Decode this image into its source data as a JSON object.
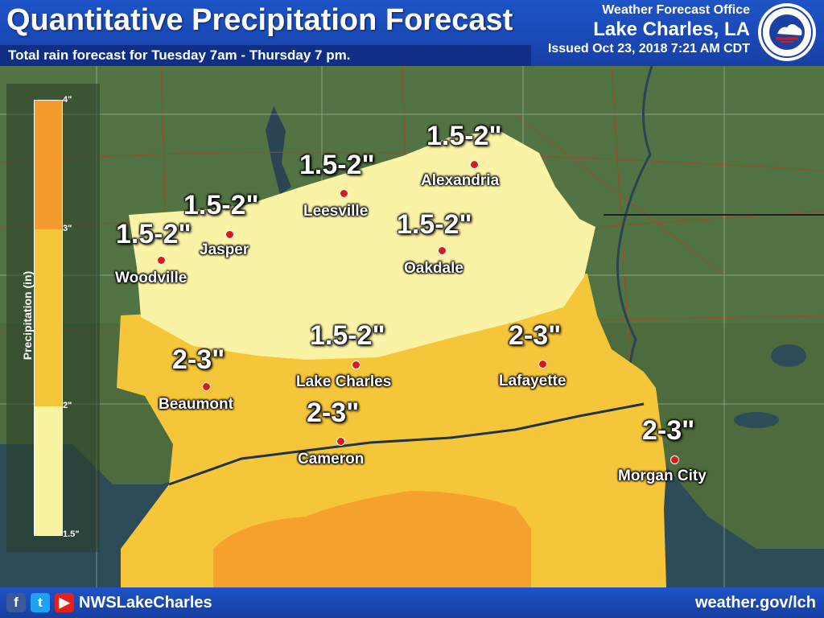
{
  "header": {
    "title": "Quantitative Precipitation Forecast",
    "subtitle": "Total rain forecast for Tuesday 7am - Thursday 7 pm.",
    "office": "Weather Forecast Office",
    "location": "Lake Charles, LA",
    "issued": "Issued Oct 23, 2018 7:21 AM CDT",
    "logo_icon": "nws-logo-icon"
  },
  "legend": {
    "label": "Precipitation (in)",
    "ticks": [
      "4\"",
      "3\"",
      "2\"",
      "1.5\""
    ],
    "colors": {
      "c_3_4": "#f59a2c",
      "c_2_3": "#f6c63a",
      "c_15_2": "#f9f4a2"
    }
  },
  "colors": {
    "land": "#4a6a3c",
    "water": "#2d4b5a",
    "light_yellow": "#faf3a6",
    "gold": "#f6c63a",
    "orange": "#f6a02e"
  },
  "cities": [
    {
      "name": "Alexandria"
    },
    {
      "name": "Leesville"
    },
    {
      "name": "Jasper"
    },
    {
      "name": "Woodville"
    },
    {
      "name": "Oakdale"
    },
    {
      "name": "Lake Charles"
    },
    {
      "name": "Lafayette"
    },
    {
      "name": "Beaumont"
    },
    {
      "name": "Cameron"
    },
    {
      "name": "Morgan City"
    }
  ],
  "amounts": [
    "1.5-2\"",
    "1.5-2\"",
    "1.5-2\"",
    "1.5-2\"",
    "1.5-2\"",
    "1.5-2\"",
    "2-3\"",
    "2-3\"",
    "2-3\"",
    "2-3\""
  ],
  "footer": {
    "icons": [
      "facebook-icon",
      "twitter-icon",
      "youtube-icon"
    ],
    "handle": "NWSLakeCharles",
    "website": "weather.gov/lch"
  }
}
